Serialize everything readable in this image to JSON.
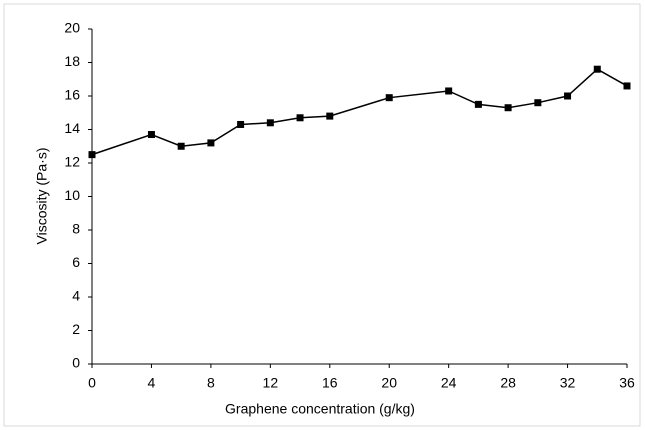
{
  "chart_data": {
    "type": "line",
    "x_label": "Graphene concentration (g/kg)",
    "y_label": "Viscosity (Pa·s)",
    "x": [
      0,
      4,
      6,
      8,
      10,
      12,
      14,
      16,
      20,
      24,
      26,
      28,
      30,
      32,
      34,
      36
    ],
    "series": [
      {
        "color": "#000000",
        "values": [
          12.5,
          13.7,
          13.0,
          13.2,
          14.3,
          14.4,
          14.7,
          14.8,
          15.9,
          16.3,
          15.5,
          15.3,
          15.6,
          16.0,
          17.6,
          16.6
        ]
      }
    ],
    "xlim": [
      0,
      36
    ],
    "xticks": [
      0,
      4,
      8,
      12,
      16,
      20,
      24,
      28,
      32,
      36
    ],
    "ylim": [
      0,
      20
    ],
    "yticks": [
      0,
      2,
      4,
      6,
      8,
      10,
      12,
      14,
      16,
      18,
      20
    ]
  }
}
